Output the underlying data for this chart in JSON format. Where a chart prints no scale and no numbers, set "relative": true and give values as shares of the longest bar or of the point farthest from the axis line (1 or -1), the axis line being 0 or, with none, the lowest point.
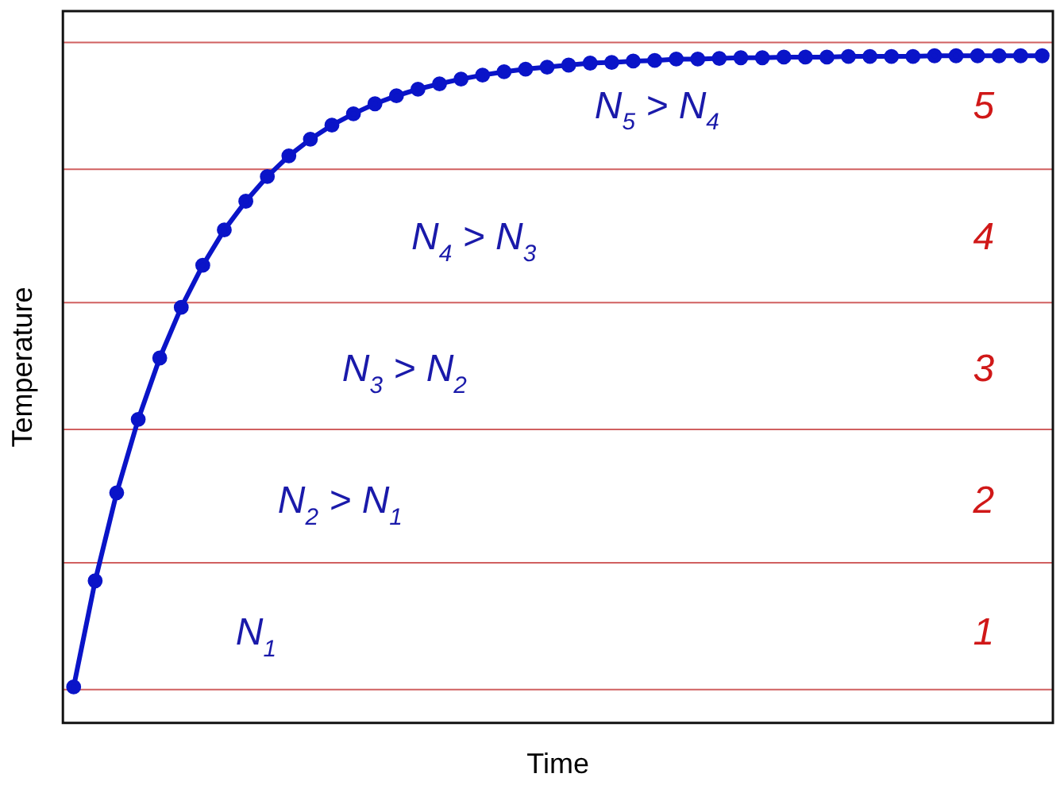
{
  "chart_data": {
    "type": "line",
    "relative": true,
    "xlabel": "Time",
    "ylabel": "Temperature",
    "marker": "circle",
    "color": "#0a14c8",
    "categories": [
      null,
      null,
      null,
      null,
      null,
      null,
      null,
      null,
      null,
      null,
      null,
      null,
      null,
      null,
      null,
      null,
      null,
      null,
      null,
      null,
      null,
      null,
      null,
      null,
      null,
      null,
      null,
      null,
      null,
      null,
      null,
      null,
      null,
      null,
      null,
      null,
      null,
      null,
      null,
      null,
      null,
      null,
      null,
      null,
      null,
      null
    ],
    "values": [
      0.054,
      0.213,
      0.345,
      0.455,
      0.547,
      0.623,
      0.686,
      0.739,
      0.782,
      0.819,
      0.85,
      0.875,
      0.896,
      0.913,
      0.928,
      0.94,
      0.95,
      0.958,
      0.965,
      0.971,
      0.976,
      0.98,
      0.983,
      0.986,
      0.989,
      0.99,
      0.992,
      0.993,
      0.995,
      0.995,
      0.996,
      0.997,
      0.997,
      0.998,
      0.998,
      0.998,
      0.999,
      0.999,
      0.999,
      0.999,
      1,
      1,
      1,
      1,
      1,
      1
    ],
    "ref_lines": [
      {
        "axis": "y",
        "value": 1.02,
        "color": "#d06060"
      },
      {
        "axis": "y",
        "value": 0.83,
        "color": "#d06060"
      },
      {
        "axis": "y",
        "value": 0.63,
        "color": "#d06060"
      },
      {
        "axis": "y",
        "value": 0.44,
        "color": "#d06060"
      },
      {
        "axis": "y",
        "value": 0.24,
        "color": "#d06060"
      },
      {
        "axis": "y",
        "value": 0.05,
        "color": "#d06060"
      }
    ],
    "annotations": [
      "N$_{1}$",
      "N$_{2}$ > N$_{1}$",
      "N$_{3}$ > N$_{2}$",
      "N$_{4}$ > N$_{3}$",
      "N$_{5}$ > N$_{4}$",
      "1",
      "2",
      "3",
      "4",
      "5"
    ]
  }
}
